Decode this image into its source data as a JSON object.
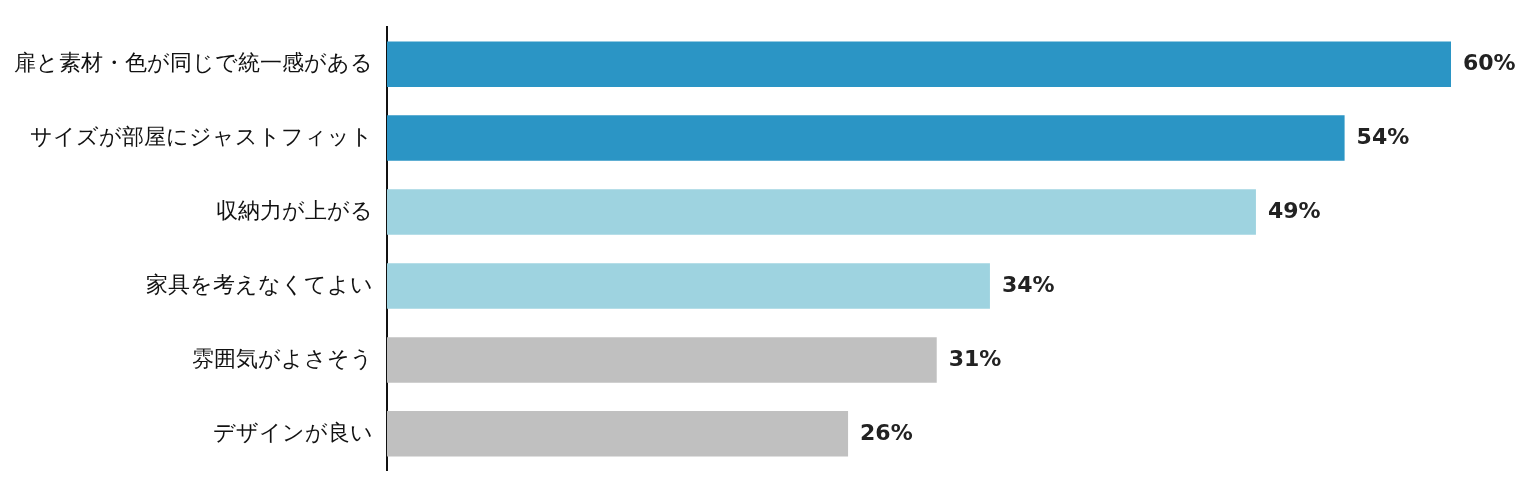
{
  "chart_data": {
    "type": "bar",
    "orientation": "horizontal",
    "categories": [
      "扉と素材・色が同じで統一感がある",
      "サイズが部屋にジャストフィット",
      "収納力が上がる",
      "家具を考えなくてよい",
      "雰囲気がよさそう",
      "デザインが良い"
    ],
    "values": [
      60,
      54,
      49,
      34,
      31,
      26
    ],
    "colors": [
      "#2b95c5",
      "#2b95c5",
      "#9ed3e0",
      "#9ed3e0",
      "#c0c0c0",
      "#c0c0c0"
    ],
    "value_labels": [
      "60%",
      "54%",
      "49%",
      "34%",
      "31%",
      "26%"
    ],
    "xlim": [
      0,
      60
    ],
    "tick_labels": "y",
    "grid": false,
    "legend": false
  }
}
